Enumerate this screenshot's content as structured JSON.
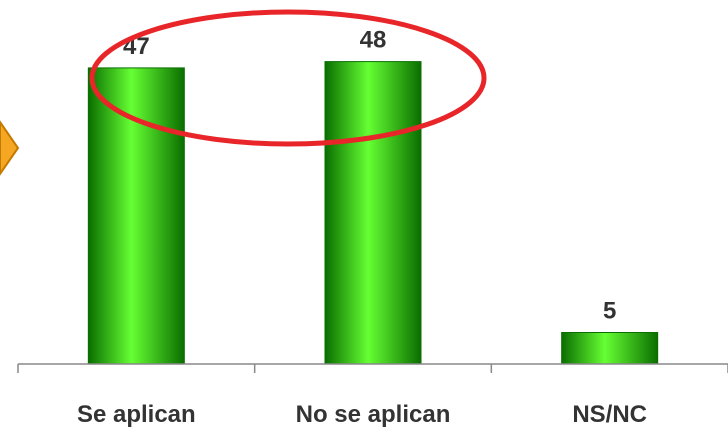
{
  "chart_data": {
    "type": "bar",
    "categories": [
      "Se aplican",
      "No se aplican",
      "NS/NC"
    ],
    "values": [
      47,
      48,
      5
    ],
    "data_labels": [
      "47",
      "48",
      "5"
    ],
    "ylim": [
      0,
      60
    ],
    "grid": false,
    "colors": {
      "bar_light": "#66ff33",
      "bar_mid": "#22cc00",
      "bar_dark": "#0a6e00",
      "axis": "#888888",
      "highlight_ellipse": "#e8262a",
      "marker_fill": "#f5a623",
      "marker_stroke": "#c47a00"
    }
  }
}
